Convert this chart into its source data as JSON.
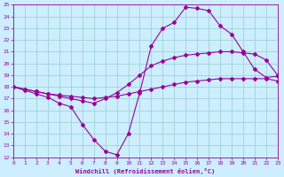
{
  "xlabel": "Windchill (Refroidissement éolien,°C)",
  "xlim": [
    0,
    23
  ],
  "ylim": [
    12,
    25
  ],
  "yticks": [
    12,
    13,
    14,
    15,
    16,
    17,
    18,
    19,
    20,
    21,
    22,
    23,
    24,
    25
  ],
  "xticks": [
    0,
    1,
    2,
    3,
    4,
    5,
    6,
    7,
    8,
    9,
    10,
    11,
    12,
    13,
    14,
    15,
    16,
    17,
    18,
    19,
    20,
    21,
    22,
    23
  ],
  "bg_color": "#cceeff",
  "grid_color": "#99cccc",
  "line_color": "#990099",
  "line1_x": [
    0,
    1,
    2,
    3,
    4,
    5,
    6,
    7,
    8,
    9,
    10,
    11,
    12,
    13,
    14,
    15,
    16,
    17,
    18,
    19,
    20,
    21,
    22,
    23
  ],
  "line1_y": [
    18.0,
    17.8,
    17.6,
    17.4,
    17.3,
    17.2,
    17.1,
    17.0,
    17.1,
    17.2,
    17.4,
    17.6,
    17.8,
    18.0,
    18.2,
    18.4,
    18.5,
    18.6,
    18.7,
    18.7,
    18.7,
    18.7,
    18.7,
    18.5
  ],
  "line2_x": [
    0,
    1,
    2,
    3,
    4,
    5,
    6,
    7,
    8,
    9,
    10,
    11,
    12,
    13,
    14,
    15,
    16,
    17,
    18,
    19,
    20,
    21,
    22,
    23
  ],
  "line2_y": [
    18.0,
    17.8,
    17.6,
    17.4,
    17.2,
    17.0,
    16.8,
    16.6,
    17.0,
    17.5,
    18.2,
    19.0,
    19.8,
    20.2,
    20.5,
    20.7,
    20.8,
    20.9,
    21.0,
    21.0,
    20.9,
    20.8,
    20.3,
    19.0
  ],
  "line3_x": [
    0,
    1,
    2,
    3,
    4,
    5,
    6,
    7,
    8,
    9,
    10,
    11,
    12,
    13,
    14,
    15,
    16,
    17,
    18,
    19,
    20,
    21,
    22,
    23
  ],
  "line3_y": [
    18.0,
    17.7,
    17.4,
    17.1,
    16.6,
    16.3,
    14.8,
    13.5,
    12.5,
    12.2,
    14.0,
    17.5,
    21.5,
    23.0,
    23.5,
    24.8,
    24.7,
    24.5,
    23.2,
    22.5,
    21.0,
    19.5,
    18.8,
    18.9
  ]
}
